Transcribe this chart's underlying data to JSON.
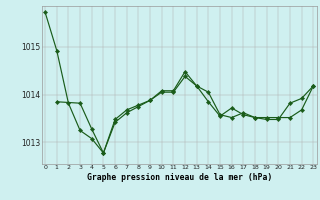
{
  "background_color": "#cff0f0",
  "grid_color": "#b0b0b0",
  "line_color": "#1a5c1a",
  "marker_color": "#1a5c1a",
  "xlabel": "Graphe pression niveau de la mer (hPa)",
  "ylim": [
    1012.55,
    1015.85
  ],
  "yticks": [
    1013,
    1014,
    1015
  ],
  "xlim": [
    -0.3,
    23.3
  ],
  "xticks": [
    0,
    1,
    2,
    3,
    4,
    5,
    6,
    7,
    8,
    9,
    10,
    11,
    12,
    13,
    14,
    15,
    16,
    17,
    18,
    19,
    20,
    21,
    22,
    23
  ],
  "series1_x": [
    0,
    1,
    2,
    3,
    4,
    5,
    6,
    7,
    8,
    9,
    10,
    11,
    12,
    13,
    14,
    15,
    16,
    17,
    18,
    19,
    20,
    21,
    22,
    23
  ],
  "series1_y": [
    1015.72,
    1014.92,
    1013.82,
    1013.25,
    1013.08,
    1012.78,
    1013.42,
    1013.62,
    1013.75,
    1013.88,
    1014.05,
    1014.05,
    1014.38,
    1014.18,
    1013.85,
    1013.55,
    1013.72,
    1013.58,
    1013.52,
    1013.52,
    1013.52,
    1013.52,
    1013.68,
    1014.18
  ],
  "series2_x": [
    1,
    3,
    4,
    5,
    6,
    7,
    8,
    9,
    10,
    11,
    12,
    13,
    14,
    15,
    16,
    17,
    18,
    19,
    20,
    21,
    22,
    23
  ],
  "series2_y": [
    1013.85,
    1013.82,
    1013.28,
    1012.78,
    1013.48,
    1013.68,
    1013.78,
    1013.88,
    1014.08,
    1014.08,
    1014.48,
    1014.18,
    1014.05,
    1013.58,
    1013.52,
    1013.62,
    1013.52,
    1013.48,
    1013.48,
    1013.82,
    1013.92,
    1014.18
  ]
}
